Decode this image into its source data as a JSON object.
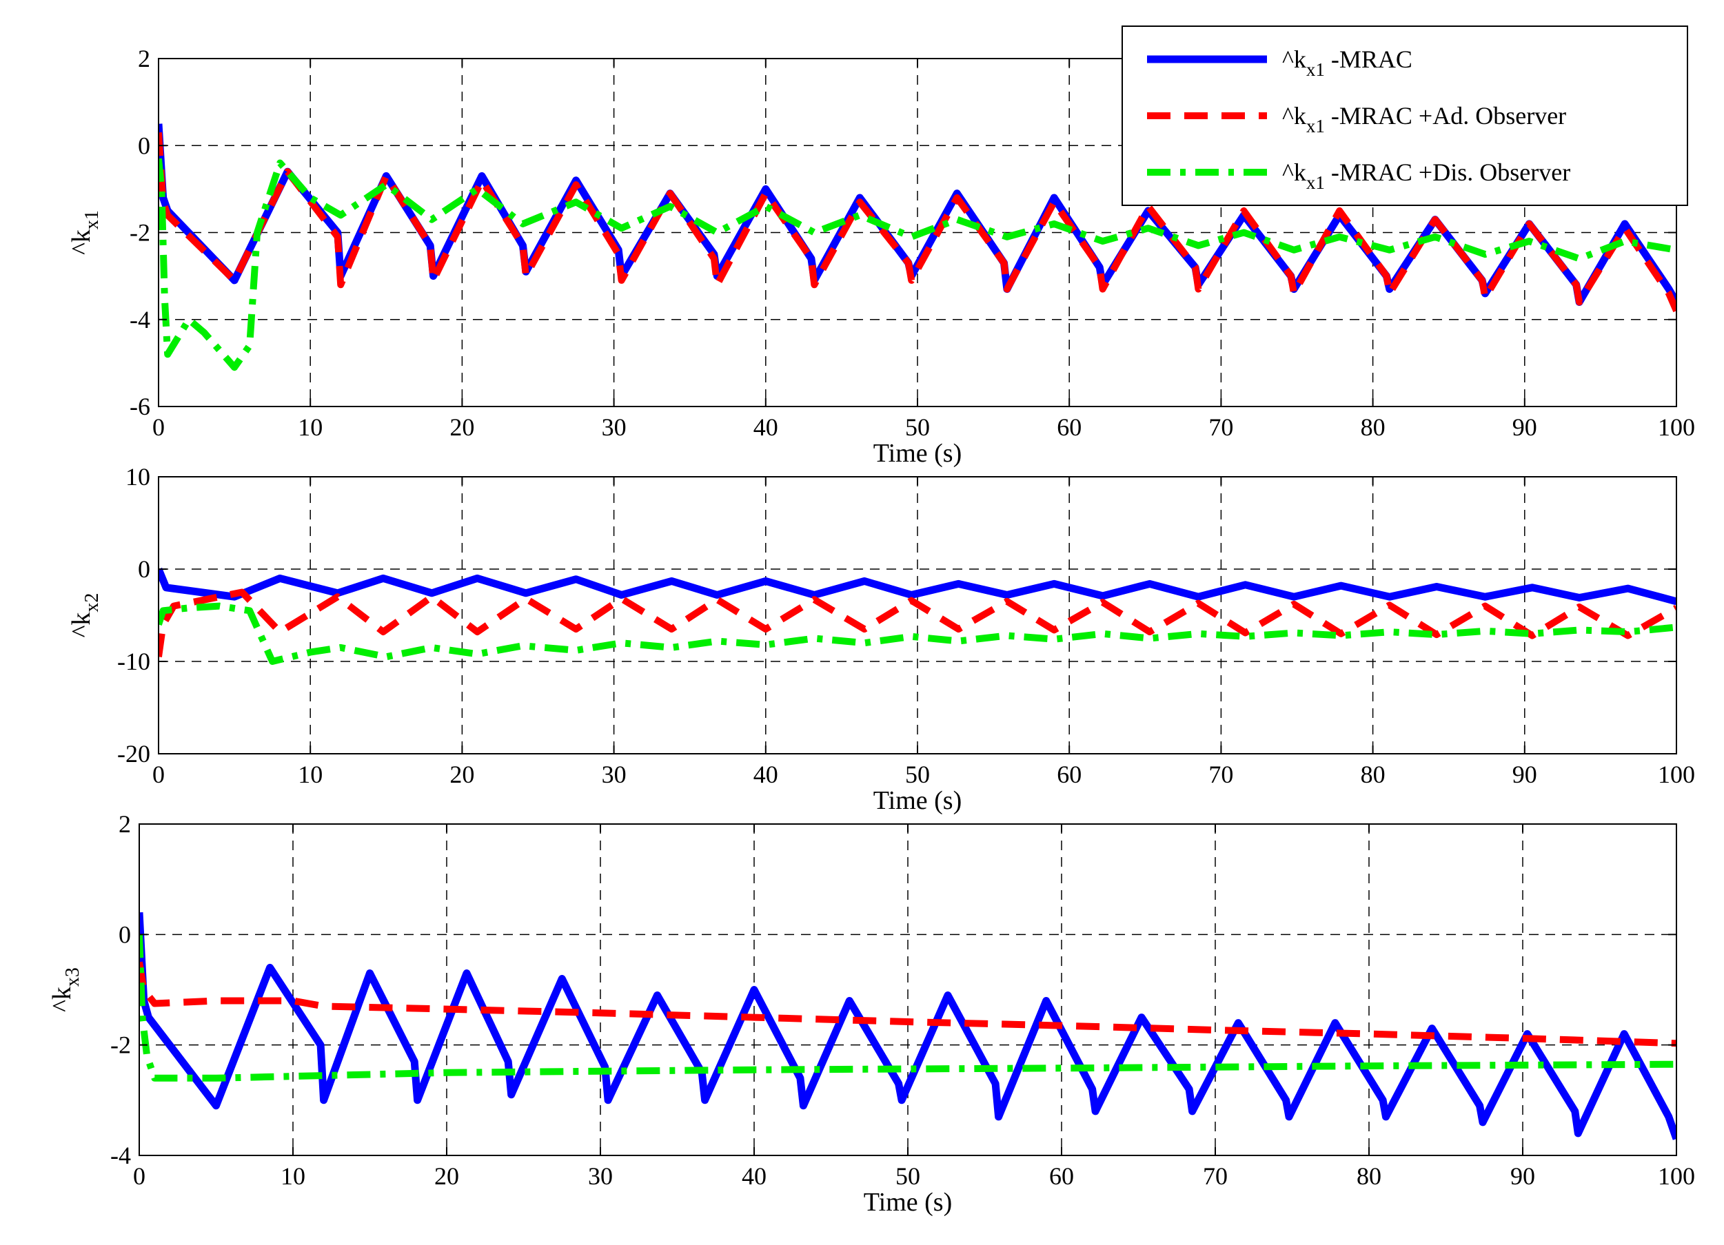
{
  "chart_data": [
    {
      "type": "line",
      "id": "p1",
      "xlabel": "Time (s)",
      "ylabel": "^k",
      "ylabel_sub": "x1",
      "xlim": [
        0,
        100
      ],
      "ylim": [
        -6,
        2
      ],
      "xticks": [
        0,
        10,
        20,
        30,
        40,
        50,
        60,
        70,
        80,
        90,
        100
      ],
      "xtick_labels": [
        "0",
        "10",
        "20",
        "30",
        "40",
        "50",
        "60",
        "70",
        "80",
        "90",
        "100"
      ],
      "yticks": [
        -6,
        -4,
        -2,
        0,
        2
      ],
      "ytick_labels": [
        "-6",
        "-4",
        "-2",
        "0",
        "2"
      ],
      "grid": true,
      "legend_position": "top-right",
      "legend": [
        {
          "prefix": "^k",
          "sub": "x1",
          "suffix": " -MRAC",
          "series": 0
        },
        {
          "prefix": "^k",
          "sub": "x1",
          "suffix": " -MRAC +Ad. Observer",
          "series": 1
        },
        {
          "prefix": "^k",
          "sub": "x1",
          "suffix": " -MRAC +Dis. Observer",
          "series": 2
        }
      ],
      "series": [
        {
          "name": "^kx1 -MRAC",
          "color": "#0000ff",
          "dash": "solid",
          "x": [
            0,
            0.3,
            0.6,
            5,
            8.5,
            11.8,
            12,
            15,
            17.9,
            18.1,
            21.3,
            24,
            24.2,
            27.5,
            30.3,
            30.5,
            33.7,
            36.6,
            36.8,
            40,
            43,
            43.2,
            46.2,
            49.4,
            49.6,
            52.6,
            55.7,
            55.9,
            59,
            62,
            62.2,
            65.2,
            68.3,
            68.5,
            71.5,
            74.6,
            74.8,
            77.8,
            80.9,
            81.1,
            84.1,
            87.2,
            87.4,
            90.3,
            93.4,
            93.6,
            96.6,
            99.5,
            100
          ],
          "y": [
            0.5,
            -1.2,
            -1.5,
            -3.1,
            -0.6,
            -2.0,
            -3.0,
            -0.7,
            -2.3,
            -3.0,
            -0.7,
            -2.3,
            -2.9,
            -0.8,
            -2.4,
            -3.0,
            -1.1,
            -2.5,
            -3.0,
            -1.0,
            -2.6,
            -3.1,
            -1.2,
            -2.7,
            -3.0,
            -1.1,
            -2.7,
            -3.3,
            -1.2,
            -2.8,
            -3.2,
            -1.5,
            -2.8,
            -3.2,
            -1.6,
            -3.0,
            -3.3,
            -1.6,
            -3.0,
            -3.3,
            -1.7,
            -3.1,
            -3.4,
            -1.8,
            -3.2,
            -3.6,
            -1.8,
            -3.3,
            -3.6
          ]
        },
        {
          "name": "^kx1 -MRAC +Ad. Observer",
          "color": "#ff0000",
          "dash": "dashed",
          "x": [
            0,
            0.3,
            0.6,
            5,
            8.5,
            11.8,
            12,
            15,
            17.9,
            18.1,
            21.3,
            24,
            24.2,
            27.5,
            30.3,
            30.5,
            33.7,
            36.6,
            36.8,
            40,
            43,
            43.2,
            46.2,
            49.4,
            49.6,
            52.6,
            55.7,
            55.9,
            59,
            62,
            62.2,
            65.2,
            68.3,
            68.5,
            71.5,
            74.6,
            74.8,
            77.8,
            80.9,
            81.1,
            84.1,
            87.2,
            87.4,
            90.3,
            93.4,
            93.6,
            96.6,
            99.5,
            100
          ],
          "y": [
            0.3,
            -1.3,
            -1.6,
            -3.1,
            -0.6,
            -2.1,
            -3.2,
            -0.7,
            -2.3,
            -3.1,
            -0.8,
            -2.3,
            -3.0,
            -0.9,
            -2.5,
            -3.1,
            -1.1,
            -2.6,
            -3.2,
            -1.1,
            -2.6,
            -3.2,
            -1.3,
            -2.7,
            -3.1,
            -1.2,
            -2.7,
            -3.3,
            -1.3,
            -2.8,
            -3.3,
            -1.4,
            -2.8,
            -3.3,
            -1.5,
            -3.0,
            -3.4,
            -1.5,
            -3.0,
            -3.4,
            -1.7,
            -3.1,
            -3.5,
            -1.8,
            -3.2,
            -3.6,
            -1.9,
            -3.4,
            -3.8
          ]
        },
        {
          "name": "^kx1 -MRAC +Dis. Observer",
          "color": "#00ee00",
          "dash": "dashdot",
          "x": [
            0,
            0.2,
            0.4,
            0.6,
            2,
            3,
            5,
            6,
            6.5,
            8,
            10,
            12,
            15,
            18,
            21,
            24,
            27.5,
            30.5,
            33.7,
            36.8,
            40,
            43.2,
            46.2,
            49.6,
            52.6,
            55.9,
            59,
            62.2,
            65.2,
            68.5,
            71.5,
            74.8,
            77.8,
            81.1,
            84.1,
            87.4,
            90.3,
            93.6,
            96.6,
            100
          ],
          "y": [
            -0.3,
            -1.0,
            -3.5,
            -4.8,
            -4.0,
            -4.3,
            -5.1,
            -4.6,
            -2.0,
            -0.4,
            -1.2,
            -1.6,
            -0.9,
            -1.7,
            -1.0,
            -1.8,
            -1.3,
            -1.9,
            -1.4,
            -2.0,
            -1.4,
            -2.0,
            -1.6,
            -2.1,
            -1.7,
            -2.1,
            -1.8,
            -2.2,
            -1.9,
            -2.3,
            -2.0,
            -2.4,
            -2.1,
            -2.4,
            -2.1,
            -2.5,
            -2.2,
            -2.6,
            -2.2,
            -2.4
          ]
        }
      ]
    },
    {
      "type": "line",
      "id": "p2",
      "xlabel": "Time (s)",
      "ylabel": "^k",
      "ylabel_sub": "x2",
      "xlim": [
        0,
        100
      ],
      "ylim": [
        -20,
        10
      ],
      "xticks": [
        0,
        10,
        20,
        30,
        40,
        50,
        60,
        70,
        80,
        90,
        100
      ],
      "xtick_labels": [
        "0",
        "10",
        "20",
        "30",
        "40",
        "50",
        "60",
        "70",
        "80",
        "90",
        "100"
      ],
      "yticks": [
        -20,
        -10,
        0,
        10
      ],
      "ytick_labels": [
        "-20",
        "-10",
        "0",
        "10"
      ],
      "grid": true,
      "series": [
        {
          "name": "^kx2 -MRAC",
          "color": "#0000ff",
          "dash": "solid",
          "x": [
            0,
            0.5,
            5,
            8,
            11.8,
            14.8,
            18,
            21,
            24.2,
            27.5,
            30.5,
            33.8,
            36.8,
            40,
            43.2,
            46.5,
            49.6,
            52.7,
            55.9,
            59,
            62.2,
            65.3,
            68.5,
            71.6,
            74.8,
            77.9,
            81.1,
            84.2,
            87.4,
            90.5,
            93.6,
            96.8,
            100
          ],
          "y": [
            0,
            -2,
            -3.0,
            -1.0,
            -2.6,
            -1.0,
            -2.6,
            -1.0,
            -2.6,
            -1.1,
            -2.8,
            -1.3,
            -2.8,
            -1.3,
            -2.8,
            -1.3,
            -2.8,
            -1.6,
            -2.8,
            -1.6,
            -2.9,
            -1.6,
            -3.0,
            -1.7,
            -3.0,
            -1.8,
            -3.0,
            -1.9,
            -3.0,
            -2.0,
            -3.1,
            -2.1,
            -3.5
          ]
        },
        {
          "name": "^kx2 -MRAC +Ad. Observer",
          "color": "#ff0000",
          "dash": "dashed",
          "x": [
            0,
            0.3,
            1,
            5.5,
            8,
            11.8,
            14.8,
            18,
            21,
            24.2,
            27.5,
            30.5,
            33.8,
            36.8,
            40,
            43.2,
            46.5,
            49.6,
            52.7,
            55.9,
            59,
            62.2,
            65.3,
            68.5,
            71.6,
            74.8,
            77.9,
            81.1,
            84.2,
            87.4,
            90.5,
            93.6,
            96.8,
            100
          ],
          "y": [
            -9.5,
            -6,
            -4,
            -2.5,
            -6.8,
            -3.0,
            -6.8,
            -3.0,
            -6.8,
            -3.2,
            -6.5,
            -3.2,
            -6.5,
            -3.3,
            -6.5,
            -3.3,
            -6.5,
            -3.4,
            -6.5,
            -3.5,
            -6.6,
            -3.6,
            -6.8,
            -3.7,
            -6.9,
            -3.8,
            -7.0,
            -3.9,
            -7.1,
            -4.0,
            -7.2,
            -4.1,
            -7.2,
            -4.2
          ]
        },
        {
          "name": "^kx2 -MRAC +Dis. Observer",
          "color": "#00ee00",
          "dash": "dashdot",
          "x": [
            0,
            0.3,
            2,
            4,
            6,
            7.5,
            10,
            12,
            15,
            18,
            21,
            24,
            27.5,
            30.5,
            33.8,
            36.8,
            40,
            43.2,
            46.5,
            49.6,
            52.7,
            55.9,
            59,
            62.2,
            65.3,
            68.5,
            71.6,
            74.8,
            77.9,
            81.1,
            84.2,
            87.4,
            90.5,
            93.6,
            96.8,
            100
          ],
          "y": [
            -6,
            -4.5,
            -4.2,
            -4.0,
            -4.5,
            -10.0,
            -9.0,
            -8.5,
            -9.5,
            -8.5,
            -9.2,
            -8.3,
            -8.8,
            -8.0,
            -8.5,
            -7.8,
            -8.2,
            -7.5,
            -8.0,
            -7.3,
            -7.8,
            -7.2,
            -7.6,
            -7.0,
            -7.5,
            -7.0,
            -7.3,
            -6.9,
            -7.2,
            -6.8,
            -7.1,
            -6.7,
            -7.0,
            -6.6,
            -6.8,
            -6.3
          ]
        }
      ]
    },
    {
      "type": "line",
      "id": "p3",
      "xlabel": "Time (s)",
      "ylabel": "^k",
      "ylabel_sub": "x3",
      "xlim": [
        0,
        100
      ],
      "ylim": [
        -4,
        2
      ],
      "xticks": [
        0,
        10,
        20,
        30,
        40,
        50,
        60,
        70,
        80,
        90,
        100
      ],
      "xtick_labels": [
        "0",
        "10",
        "20",
        "30",
        "40",
        "50",
        "60",
        "70",
        "80",
        "90",
        "100"
      ],
      "yticks": [
        -4,
        -2,
        0,
        2
      ],
      "ytick_labels": [
        "-4",
        "-2",
        "0",
        "2"
      ],
      "grid": true,
      "series": [
        {
          "name": "^kx3 -MRAC",
          "color": "#0000ff",
          "dash": "solid",
          "x": [
            0,
            0.3,
            0.6,
            5,
            8.5,
            11.8,
            12,
            15,
            17.9,
            18.1,
            21.3,
            24,
            24.2,
            27.5,
            30.3,
            30.5,
            33.7,
            36.6,
            36.8,
            40,
            43,
            43.2,
            46.2,
            49.4,
            49.6,
            52.6,
            55.7,
            55.9,
            59,
            62,
            62.2,
            65.2,
            68.3,
            68.5,
            71.5,
            74.6,
            74.8,
            77.8,
            80.9,
            81.1,
            84.1,
            87.2,
            87.4,
            90.3,
            93.4,
            93.6,
            96.6,
            99.5,
            100
          ],
          "y": [
            0.4,
            -1.2,
            -1.5,
            -3.1,
            -0.6,
            -2.0,
            -3.0,
            -0.7,
            -2.3,
            -3.0,
            -0.7,
            -2.3,
            -2.9,
            -0.8,
            -2.4,
            -3.0,
            -1.1,
            -2.5,
            -3.0,
            -1.0,
            -2.6,
            -3.1,
            -1.2,
            -2.7,
            -3.0,
            -1.1,
            -2.7,
            -3.3,
            -1.2,
            -2.8,
            -3.2,
            -1.5,
            -2.8,
            -3.2,
            -1.6,
            -3.0,
            -3.3,
            -1.6,
            -3.0,
            -3.3,
            -1.7,
            -3.1,
            -3.4,
            -1.8,
            -3.2,
            -3.6,
            -1.8,
            -3.3,
            -3.7
          ]
        },
        {
          "name": "^kx3 -MRAC +Ad. Observer",
          "color": "#ff0000",
          "dash": "dashed",
          "x": [
            0,
            0.3,
            1,
            5,
            10,
            12,
            20,
            30,
            40,
            50,
            60,
            70,
            80,
            90,
            100
          ],
          "y": [
            -0.5,
            -1.0,
            -1.25,
            -1.2,
            -1.2,
            -1.3,
            -1.35,
            -1.42,
            -1.5,
            -1.58,
            -1.65,
            -1.73,
            -1.8,
            -1.88,
            -1.97
          ]
        },
        {
          "name": "^kx3 -MRAC +Dis. Observer",
          "color": "#00ee00",
          "dash": "dashdot",
          "x": [
            0,
            0.2,
            0.5,
            1,
            5,
            20,
            40,
            60,
            80,
            100
          ],
          "y": [
            0.0,
            -1.5,
            -2.2,
            -2.6,
            -2.6,
            -2.5,
            -2.45,
            -2.42,
            -2.38,
            -2.35
          ]
        }
      ]
    }
  ]
}
